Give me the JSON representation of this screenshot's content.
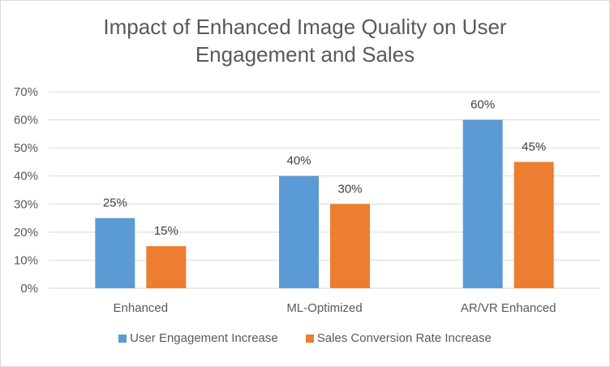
{
  "chart_data": {
    "type": "bar",
    "title_line1": "Impact of Enhanced Image Quality on User",
    "title_line2": "Engagement and Sales",
    "categories": [
      "Enhanced",
      "ML-Optimized",
      "AR/VR Enhanced"
    ],
    "series": [
      {
        "name": "User Engagement Increase",
        "values": [
          25,
          40,
          60
        ],
        "color": "#5b9bd5"
      },
      {
        "name": "Sales Conversion Rate Increase",
        "values": [
          15,
          30,
          45
        ],
        "color": "#ed7d31"
      }
    ],
    "ylim": [
      0,
      70
    ],
    "yticks": [
      0,
      10,
      20,
      30,
      40,
      50,
      60,
      70
    ],
    "tick_suffix": "%",
    "label_suffix": "%",
    "grid": true,
    "grid_color": "#d9d9d9",
    "legend_position": "bottom"
  }
}
